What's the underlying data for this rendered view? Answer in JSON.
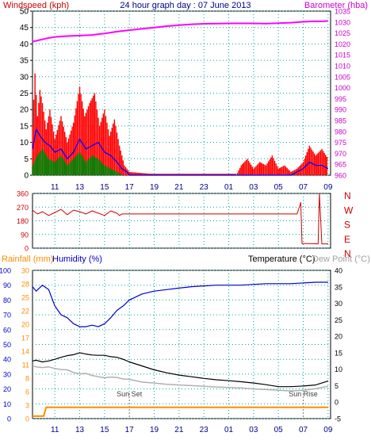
{
  "chart_data": [
    {
      "type": "line",
      "title": "24 hour graph day : 07 June 2013",
      "left_axis_label": "Windspeed (kph)",
      "right_axis_label": "Barometer (hba)",
      "x_tick_labels": [
        "11",
        "13",
        "15",
        "17",
        "19",
        "21",
        "23",
        "01",
        "03",
        "05",
        "07",
        "09"
      ],
      "y_left_ticks": [
        "0",
        "5",
        "10",
        "15",
        "20",
        "25",
        "30",
        "35",
        "40",
        "45",
        "50"
      ],
      "y_left_range": [
        0,
        50
      ],
      "y_right_ticks": [
        "960",
        "965",
        "970",
        "975",
        "980",
        "985",
        "990",
        "995",
        "1000",
        "1005",
        "1010",
        "1015",
        "1020",
        "1025",
        "1030",
        "1035"
      ],
      "y_right_range": [
        960,
        1035
      ],
      "colors": {
        "gust": "#ff0000",
        "average": "#0000ff",
        "low": "#008000",
        "barometer": "#ff00ff"
      },
      "series": [
        {
          "name": "Barometer",
          "x": [
            9.2,
            9.8,
            10.4,
            11,
            12,
            13,
            14,
            15,
            16,
            17,
            18,
            19,
            20,
            21,
            22,
            23,
            24,
            25,
            26,
            27,
            28,
            29,
            30,
            31,
            32,
            32.5,
            33
          ],
          "values": [
            1021,
            1021.8,
            1022.6,
            1023.2,
            1023.6,
            1023.8,
            1024.1,
            1024.8,
            1025.6,
            1026.3,
            1026.9,
            1027.5,
            1028.1,
            1028.6,
            1029.0,
            1029.2,
            1029.3,
            1029.4,
            1029.4,
            1029.4,
            1029.3,
            1029.5,
            1029.7,
            1030.1,
            1030.4,
            1030.3,
            1030.5
          ]
        },
        {
          "name": "Gust",
          "x": [
            9.2,
            9.4,
            9.6,
            9.8,
            10,
            10.3,
            10.6,
            11,
            11.5,
            12,
            12.5,
            13,
            13.4,
            13.8,
            14.2,
            14.6,
            15,
            15.4,
            15.8,
            16.2,
            16.4,
            16.6,
            17,
            20,
            24,
            25.6,
            26,
            26.5,
            27,
            27.5,
            28,
            28.5,
            29,
            29.5,
            30,
            30.5,
            31,
            31.5,
            32,
            32.5,
            33
          ],
          "values": [
            15,
            31,
            18,
            26,
            22,
            14,
            20,
            11,
            18,
            10,
            16,
            27,
            18,
            22,
            25,
            15,
            20,
            12,
            17,
            9,
            6,
            3,
            1,
            0,
            0,
            0,
            3,
            5,
            2,
            4,
            3,
            6,
            2,
            3,
            1,
            2,
            4,
            9,
            6,
            8,
            5
          ]
        },
        {
          "name": "Average",
          "x": [
            9.2,
            9.5,
            9.8,
            10.2,
            10.6,
            11,
            11.5,
            12,
            12.5,
            13,
            13.5,
            14,
            14.5,
            15,
            15.5,
            16,
            16.4,
            16.8,
            17,
            30,
            31,
            31.5,
            32,
            32.5,
            33
          ],
          "values": [
            8,
            14,
            12,
            10,
            9,
            7,
            8,
            5,
            7,
            11,
            8,
            9,
            10,
            7,
            6,
            4,
            2,
            1,
            0,
            0,
            2,
            4,
            3,
            3,
            2
          ]
        },
        {
          "name": "Low",
          "x": [
            9.2,
            9.6,
            10,
            10.5,
            11,
            11.5,
            12,
            12.5,
            13,
            13.5,
            14,
            14.5,
            15,
            15.5,
            16,
            16.5,
            17
          ],
          "values": [
            3,
            6,
            8,
            5,
            4,
            6,
            3,
            5,
            7,
            4,
            6,
            5,
            3,
            2,
            1,
            0,
            0
          ]
        }
      ]
    },
    {
      "type": "line",
      "right_axis_labels": [
        "N",
        "W",
        "S",
        "E",
        "N"
      ],
      "y_left_ticks": [
        "0",
        "90",
        "180",
        "270",
        "360"
      ],
      "y_range": [
        0,
        360
      ],
      "series": [
        {
          "name": "Wind Direction",
          "x": [
            9.2,
            9.6,
            10,
            10.5,
            11,
            11.5,
            12,
            12.5,
            13,
            13.5,
            14,
            14.5,
            15,
            15.5,
            16,
            16.2,
            16.4,
            30.5,
            30.8,
            30.9,
            31.5,
            32.2,
            32.3,
            32.5,
            33
          ],
          "values": [
            250,
            225,
            240,
            215,
            235,
            255,
            220,
            250,
            240,
            225,
            245,
            230,
            215,
            245,
            230,
            215,
            225,
            225,
            300,
            30,
            30,
            28,
            360,
            28,
            28
          ]
        }
      ]
    },
    {
      "type": "line",
      "left_axis_label_1": "Rainfall (mm)",
      "left_axis_label_2": "Humidity (%)",
      "right_axis_label_1": "Temperature (°C)",
      "right_axis_label_2": "Dew Point (°C)",
      "y_humidity_ticks": [
        "0",
        "10",
        "20",
        "30",
        "40",
        "50",
        "60",
        "70",
        "80",
        "90",
        "100"
      ],
      "y_rain_ticks": [
        "0",
        "3",
        "6",
        "8",
        "11",
        "14",
        "17",
        "20",
        "22",
        "25",
        "28",
        "30"
      ],
      "y_temp_ticks": [
        "-5",
        "0",
        "5",
        "10",
        "15",
        "20",
        "25",
        "30",
        "35",
        "40"
      ],
      "humidity_range": [
        0,
        100
      ],
      "temp_range": [
        -5,
        40
      ],
      "annotations": [
        "Sun Set",
        "Sun Rise"
      ],
      "series": [
        {
          "name": "Humidity",
          "x": [
            9.2,
            9.5,
            10,
            10.5,
            11,
            11.5,
            12,
            12.5,
            13,
            13.5,
            14,
            14.5,
            15,
            15.5,
            16,
            16.5,
            17,
            18,
            19,
            20,
            21,
            22,
            24,
            26,
            28,
            30,
            32,
            33
          ],
          "values": [
            89,
            86,
            90,
            87,
            76,
            70,
            68,
            64,
            62,
            62,
            63,
            62,
            64,
            68,
            73,
            76,
            80,
            84,
            86,
            87,
            88,
            89,
            90,
            90,
            91,
            91,
            92,
            92
          ]
        },
        {
          "name": "Temperature",
          "x": [
            9.2,
            9.5,
            10,
            10.5,
            11,
            11.5,
            12,
            12.5,
            13,
            13.5,
            14,
            14.5,
            15,
            15.5,
            16,
            16.5,
            17,
            18,
            19,
            20,
            21,
            22,
            23,
            24,
            25,
            26,
            27,
            28,
            29,
            30,
            31,
            32,
            32.5,
            33
          ],
          "values": [
            12.5,
            12.7,
            12.2,
            12.5,
            13.0,
            13.6,
            14.1,
            14.4,
            15.0,
            14.6,
            14.3,
            14.2,
            14.2,
            13.8,
            13.6,
            13.0,
            12.2,
            11.0,
            9.8,
            8.9,
            8.2,
            7.7,
            7.2,
            6.8,
            6.5,
            6.2,
            5.8,
            5.3,
            4.7,
            4.7,
            4.9,
            5.2,
            5.8,
            6.4
          ]
        },
        {
          "name": "Dew Point",
          "x": [
            9.2,
            9.5,
            10,
            10.5,
            11,
            11.5,
            12,
            12.5,
            13,
            13.5,
            14,
            14.5,
            15,
            15.5,
            16,
            16.5,
            17,
            18,
            19,
            20,
            22,
            24,
            26,
            27,
            28,
            29,
            30,
            31,
            32,
            33
          ],
          "values": [
            11.0,
            10.7,
            10.5,
            10.7,
            10.2,
            9.9,
            9.8,
            9.0,
            8.6,
            8.7,
            8.1,
            7.7,
            7.4,
            7.6,
            7.5,
            7.0,
            6.9,
            6.1,
            5.8,
            5.4,
            5.0,
            4.6,
            4.3,
            4.0,
            3.8,
            3.6,
            3.4,
            3.6,
            4.1,
            4.8
          ]
        },
        {
          "name": "Rainfall",
          "x": [
            9.2,
            10.1,
            10.3,
            10.4,
            33
          ],
          "values": [
            0.5,
            0.5,
            2.3,
            2.3,
            2.3
          ]
        }
      ]
    }
  ]
}
